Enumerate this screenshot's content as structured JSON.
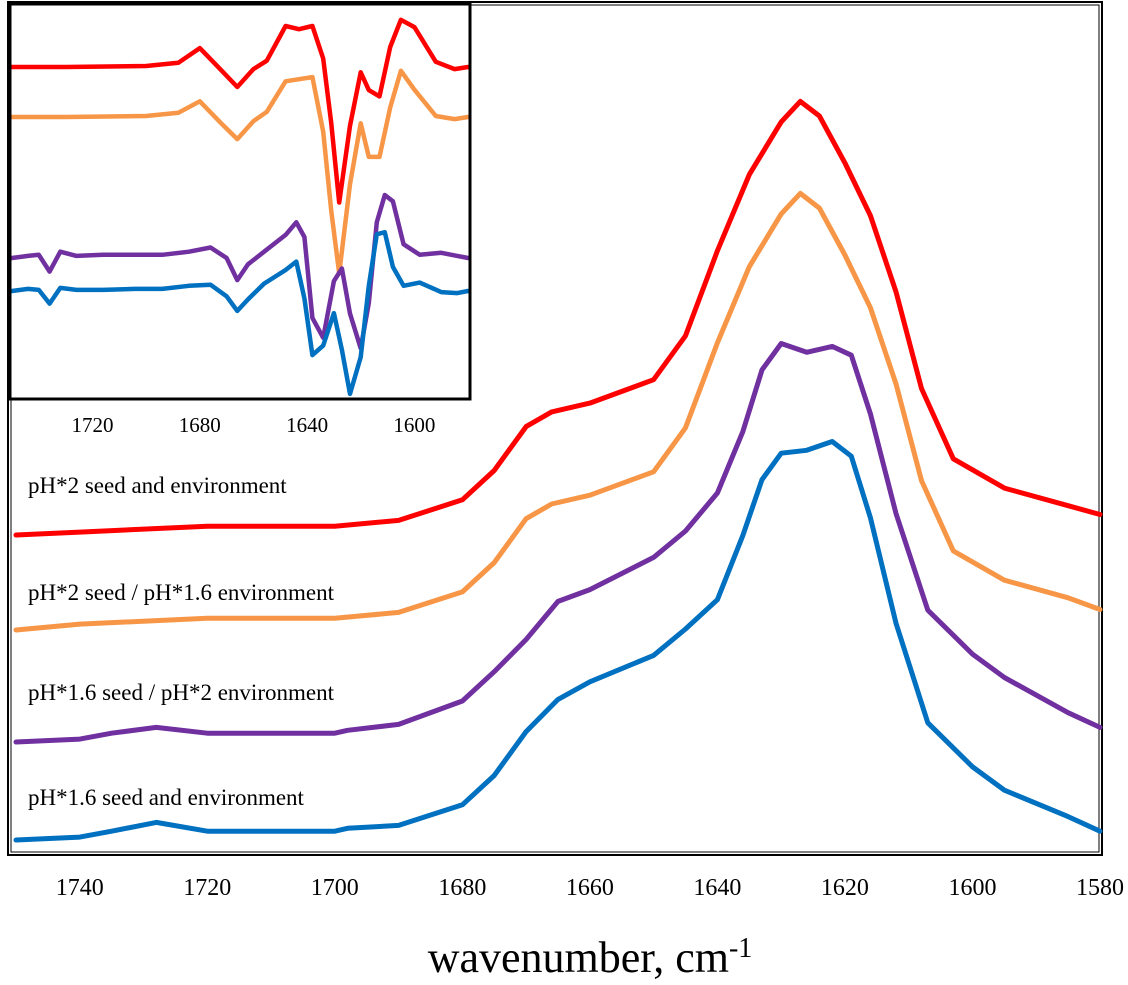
{
  "chart_data": [
    {
      "type": "line",
      "panel": "main",
      "title": "",
      "xlabel": "wavenumber, cm",
      "xlabel_superscript": "-1",
      "ylabel": "",
      "xlim": [
        1750,
        1580
      ],
      "x_reversed": true,
      "xticks": [
        "1740",
        "1720",
        "1700",
        "1680",
        "1660",
        "1640",
        "1620",
        "1600",
        "1580"
      ],
      "y_axis_shown": false,
      "grid": false,
      "series_labels_inline": true,
      "series": [
        {
          "name": "pH*2 seed and environment",
          "color": "#ff0000",
          "x": [
            1750,
            1740,
            1720,
            1700,
            1690,
            1680,
            1675,
            1670,
            1666,
            1660,
            1650,
            1645,
            1640,
            1635,
            1630,
            1627,
            1624,
            1620,
            1616,
            1612,
            1608,
            1603,
            1595,
            1585,
            1580
          ],
          "y": [
            0.0,
            0.01,
            0.03,
            0.03,
            0.05,
            0.12,
            0.22,
            0.37,
            0.42,
            0.45,
            0.53,
            0.68,
            0.97,
            1.23,
            1.41,
            1.48,
            1.43,
            1.27,
            1.09,
            0.83,
            0.5,
            0.26,
            0.16,
            0.1,
            0.07
          ]
        },
        {
          "name": "pH*2 seed / pH*1.6 environment",
          "color": "#f79646",
          "x": [
            1750,
            1740,
            1720,
            1700,
            1690,
            1680,
            1675,
            1670,
            1666,
            1660,
            1650,
            1645,
            1640,
            1635,
            1630,
            1627,
            1624,
            1620,
            1616,
            1612,
            1608,
            1603,
            1595,
            1585,
            1580
          ],
          "y": [
            0.0,
            0.02,
            0.04,
            0.04,
            0.06,
            0.13,
            0.23,
            0.38,
            0.43,
            0.46,
            0.54,
            0.69,
            0.98,
            1.24,
            1.42,
            1.49,
            1.44,
            1.28,
            1.1,
            0.84,
            0.51,
            0.27,
            0.17,
            0.11,
            0.07
          ]
        },
        {
          "name": "pH*1.6 seed / pH*2 environment",
          "color": "#7030a0",
          "x": [
            1750,
            1740,
            1735,
            1728,
            1720,
            1700,
            1698,
            1690,
            1680,
            1675,
            1670,
            1665,
            1660,
            1650,
            1645,
            1640,
            1636,
            1633,
            1630,
            1626,
            1622,
            1619,
            1616,
            1612,
            1607,
            1600,
            1595,
            1585,
            1580
          ],
          "y": [
            0.0,
            0.01,
            0.03,
            0.05,
            0.03,
            0.03,
            0.04,
            0.06,
            0.14,
            0.24,
            0.35,
            0.48,
            0.52,
            0.63,
            0.72,
            0.85,
            1.06,
            1.27,
            1.36,
            1.33,
            1.35,
            1.32,
            1.12,
            0.78,
            0.45,
            0.3,
            0.22,
            0.1,
            0.05
          ]
        },
        {
          "name": "pH*1.6 seed and environment",
          "color": "#0070c0",
          "x": [
            1750,
            1740,
            1735,
            1728,
            1720,
            1700,
            1698,
            1690,
            1680,
            1675,
            1670,
            1665,
            1660,
            1650,
            1645,
            1640,
            1636,
            1633,
            1630,
            1626,
            1622,
            1619,
            1616,
            1612,
            1607,
            1600,
            1595,
            1585,
            1580
          ],
          "y": [
            0.0,
            0.01,
            0.03,
            0.06,
            0.03,
            0.03,
            0.04,
            0.05,
            0.12,
            0.22,
            0.37,
            0.48,
            0.54,
            0.63,
            0.72,
            0.82,
            1.04,
            1.23,
            1.32,
            1.33,
            1.36,
            1.31,
            1.1,
            0.74,
            0.4,
            0.25,
            0.17,
            0.08,
            0.03
          ]
        }
      ]
    },
    {
      "type": "line",
      "panel": "inset",
      "title": "",
      "xlabel": "",
      "ylabel": "",
      "xlim": [
        1750,
        1580
      ],
      "x_reversed": true,
      "xticks": [
        "1720",
        "1680",
        "1640",
        "1600"
      ],
      "y_axis_shown": false,
      "grid": false,
      "series": [
        {
          "color": "#ff0000",
          "x": [
            1750,
            1730,
            1700,
            1688,
            1680,
            1672,
            1666,
            1660,
            1655,
            1648,
            1643,
            1638,
            1634,
            1631,
            1628,
            1624,
            1620,
            1617,
            1613,
            1609,
            1605,
            1600,
            1592,
            1585,
            1580
          ],
          "y": [
            0.0,
            0.0,
            0.01,
            0.04,
            0.18,
            -0.03,
            -0.19,
            -0.02,
            0.06,
            0.39,
            0.36,
            0.39,
            0.08,
            -0.53,
            -1.29,
            -0.56,
            -0.05,
            -0.22,
            -0.28,
            0.19,
            0.45,
            0.38,
            0.05,
            -0.02,
            0.0
          ]
        },
        {
          "color": "#f79646",
          "x": [
            1750,
            1730,
            1700,
            1688,
            1680,
            1672,
            1666,
            1660,
            1655,
            1648,
            1643,
            1638,
            1634,
            1631,
            1628,
            1624,
            1620,
            1617,
            1613,
            1609,
            1605,
            1600,
            1592,
            1585,
            1580
          ],
          "y": [
            0.0,
            0.0,
            0.01,
            0.04,
            0.15,
            -0.06,
            -0.21,
            -0.04,
            0.05,
            0.34,
            0.36,
            0.38,
            -0.14,
            -0.89,
            -1.49,
            -0.64,
            -0.06,
            -0.38,
            -0.38,
            0.09,
            0.44,
            0.26,
            0.01,
            -0.02,
            0.0
          ]
        },
        {
          "color": "#7030a0",
          "x": [
            1750,
            1744,
            1740,
            1736,
            1732,
            1726,
            1716,
            1704,
            1694,
            1684,
            1676,
            1670,
            1666,
            1662,
            1656,
            1648,
            1644,
            1641,
            1638,
            1634,
            1630,
            1627,
            1624,
            1620,
            1617,
            1614,
            1611,
            1608,
            1604,
            1598,
            1590,
            1584,
            1580
          ],
          "y": [
            0.0,
            0.02,
            0.03,
            -0.13,
            0.06,
            0.02,
            0.03,
            0.03,
            0.03,
            0.06,
            0.1,
            0.0,
            -0.21,
            -0.06,
            0.06,
            0.22,
            0.34,
            0.2,
            -0.57,
            -0.76,
            -0.22,
            -0.1,
            -0.53,
            -0.86,
            -0.43,
            0.34,
            0.6,
            0.54,
            0.13,
            0.03,
            0.05,
            0.02,
            0.0
          ]
        },
        {
          "color": "#0070c0",
          "x": [
            1750,
            1744,
            1740,
            1736,
            1732,
            1726,
            1716,
            1704,
            1694,
            1684,
            1676,
            1670,
            1666,
            1662,
            1656,
            1648,
            1644,
            1641,
            1638,
            1634,
            1630,
            1627,
            1624,
            1620,
            1617,
            1614,
            1611,
            1608,
            1604,
            1598,
            1590,
            1584,
            1580
          ],
          "y": [
            0.0,
            0.02,
            0.01,
            -0.12,
            0.03,
            0.01,
            0.01,
            0.02,
            0.02,
            0.05,
            0.06,
            -0.05,
            -0.19,
            -0.08,
            0.07,
            0.2,
            0.28,
            -0.07,
            -0.61,
            -0.52,
            -0.21,
            -0.56,
            -0.98,
            -0.63,
            0.05,
            0.54,
            0.56,
            0.23,
            0.05,
            0.08,
            -0.01,
            -0.02,
            0.0
          ]
        }
      ]
    }
  ]
}
